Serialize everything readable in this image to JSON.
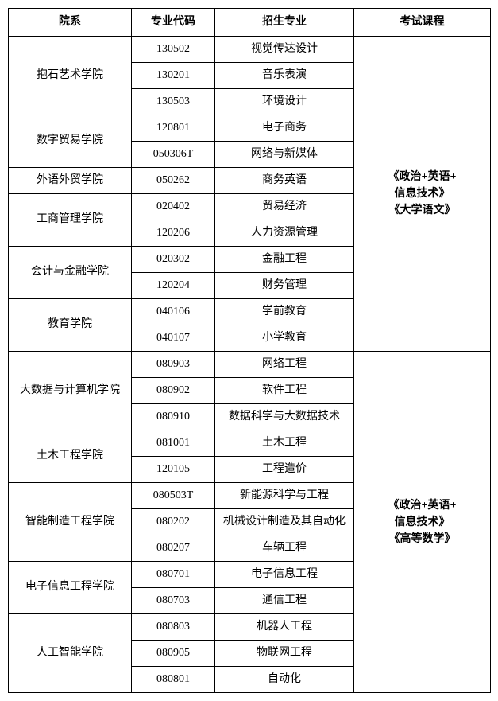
{
  "headers": {
    "department": "院系",
    "code": "专业代码",
    "major": "招生专业",
    "exam": "考试课程"
  },
  "exam1_line1": "《政治+英语+",
  "exam1_line2": "信息技术》",
  "exam1_line3": "《大学语文》",
  "exam2_line1": "《政治+英语+",
  "exam2_line2": "信息技术》",
  "exam2_line3": "《高等数学》",
  "dept1": "抱石艺术学院",
  "dept2": "数字贸易学院",
  "dept3": "外语外贸学院",
  "dept4": "工商管理学院",
  "dept5": "会计与金融学院",
  "dept6": "教育学院",
  "dept7": "大数据与计算机学院",
  "dept8": "土木工程学院",
  "dept9": "智能制造工程学院",
  "dept10": "电子信息工程学院",
  "dept11": "人工智能学院",
  "r1_code": "130502",
  "r1_major": "视觉传达设计",
  "r2_code": "130201",
  "r2_major": "音乐表演",
  "r3_code": "130503",
  "r3_major": "环境设计",
  "r4_code": "120801",
  "r4_major": "电子商务",
  "r5_code": "050306T",
  "r5_major": "网络与新媒体",
  "r6_code": "050262",
  "r6_major": "商务英语",
  "r7_code": "020402",
  "r7_major": "贸易经济",
  "r8_code": "120206",
  "r8_major": "人力资源管理",
  "r9_code": "020302",
  "r9_major": "金融工程",
  "r10_code": "120204",
  "r10_major": "财务管理",
  "r11_code": "040106",
  "r11_major": "学前教育",
  "r12_code": "040107",
  "r12_major": "小学教育",
  "r13_code": "080903",
  "r13_major": "网络工程",
  "r14_code": "080902",
  "r14_major": "软件工程",
  "r15_code": "080910",
  "r15_major": "数据科学与大数据技术",
  "r16_code": "081001",
  "r16_major": "土木工程",
  "r17_code": "120105",
  "r17_major": "工程造价",
  "r18_code": "080503T",
  "r18_major": "新能源科学与工程",
  "r19_code": "080202",
  "r19_major": "机械设计制造及其自动化",
  "r20_code": "080207",
  "r20_major": "车辆工程",
  "r21_code": "080701",
  "r21_major": "电子信息工程",
  "r22_code": "080703",
  "r22_major": "通信工程",
  "r23_code": "080803",
  "r23_major": "机器人工程",
  "r24_code": "080905",
  "r24_major": "物联网工程",
  "r25_code": "080801",
  "r25_major": "自动化"
}
